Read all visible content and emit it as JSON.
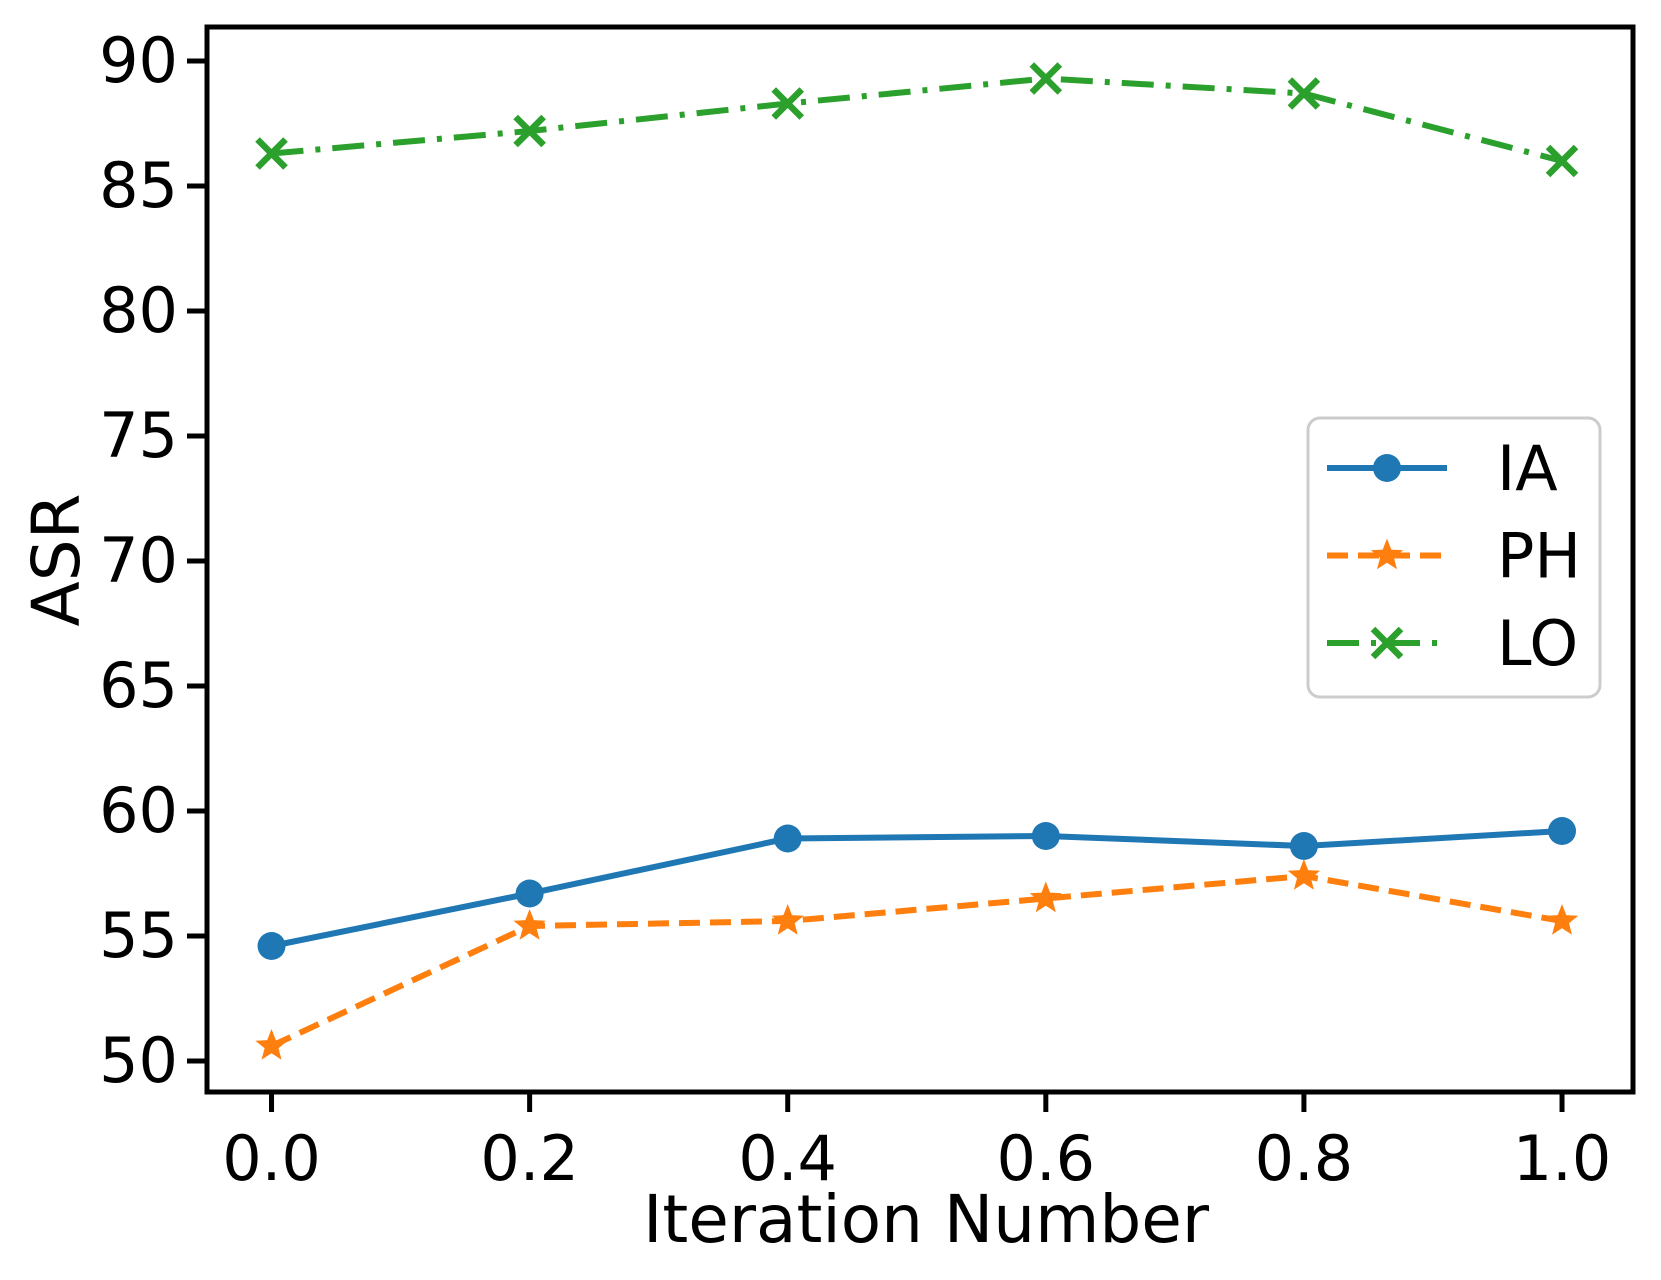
{
  "chart_data": {
    "type": "line",
    "title": "",
    "xlabel": "Iteration Number",
    "ylabel": "ASR",
    "x": [
      0.0,
      0.2,
      0.4,
      0.6,
      0.8,
      1.0
    ],
    "x_tick_labels": [
      "0.0",
      "0.2",
      "0.4",
      "0.6",
      "0.8",
      "1.0"
    ],
    "y_ticks": [
      50,
      55,
      60,
      65,
      70,
      75,
      80,
      85,
      90
    ],
    "xlim": [
      -0.05,
      1.055
    ],
    "ylim": [
      48.76,
      91.36
    ],
    "grid": false,
    "legend_position": "center right",
    "series": [
      {
        "name": "IA",
        "color": "#1f77b4",
        "line_style": "solid",
        "marker": "circle",
        "values": [
          54.6,
          56.7,
          58.9,
          59.0,
          58.6,
          59.2
        ]
      },
      {
        "name": "PH",
        "color": "#ff7f0e",
        "line_style": "dashed",
        "marker": "star",
        "values": [
          50.6,
          55.4,
          55.6,
          56.5,
          57.4,
          55.6
        ]
      },
      {
        "name": "LO",
        "color": "#2ca02c",
        "line_style": "dashdot",
        "marker": "x",
        "values": [
          86.3,
          87.2,
          88.3,
          89.3,
          88.7,
          86.0
        ]
      }
    ],
    "colors": {
      "axis": "#000000",
      "legend_border": "#cccccc",
      "background": "#ffffff"
    }
  }
}
